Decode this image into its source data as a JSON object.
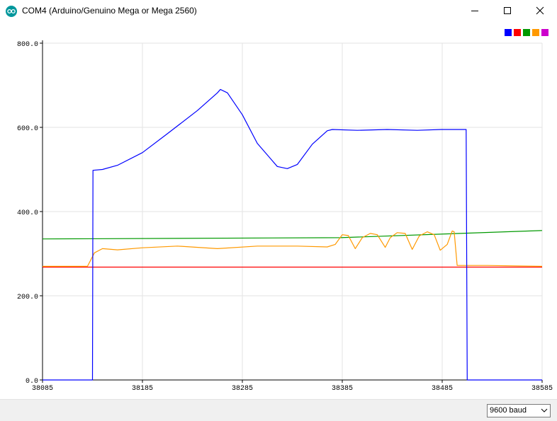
{
  "window": {
    "title": "COM4 (Arduino/Genuino Mega or Mega 2560)"
  },
  "legend_colors": [
    "#0000ff",
    "#ff0000",
    "#009900",
    "#ff9900",
    "#cc00cc"
  ],
  "baud": {
    "selected": "9600 baud"
  },
  "chart_data": {
    "type": "line",
    "title": "",
    "xlabel": "",
    "ylabel": "",
    "xlim": [
      38085,
      38585
    ],
    "ylim": [
      0,
      800
    ],
    "y_ticks": [
      0,
      200,
      400,
      600,
      800
    ],
    "y_tick_labels": [
      "0.0",
      "200.0",
      "400.0",
      "600.0",
      "800.0"
    ],
    "x_ticks": [
      38085,
      38185,
      38285,
      38385,
      38485,
      38585
    ],
    "x_tick_labels": [
      "38085",
      "38185",
      "38285",
      "38385",
      "38485",
      "38585"
    ],
    "grid": true,
    "series": [
      {
        "color": "#0000ff",
        "x": [
          38085,
          38135,
          38135.5,
          38145,
          38160,
          38185,
          38210,
          38240,
          38260,
          38263,
          38270,
          38285,
          38300,
          38320,
          38330,
          38340,
          38355,
          38370,
          38375,
          38400,
          38430,
          38460,
          38484,
          38509,
          38510,
          38585
        ],
        "y": [
          0,
          0,
          498,
          500,
          510,
          540,
          585,
          640,
          682,
          690,
          682,
          630,
          562,
          507,
          502,
          512,
          560,
          592,
          595,
          593,
          595,
          593,
          595,
          595,
          0,
          0
        ]
      },
      {
        "color": "#ff0000",
        "x": [
          38085,
          38585
        ],
        "y": [
          268,
          268
        ]
      },
      {
        "color": "#009900",
        "x": [
          38085,
          38383,
          38585
        ],
        "y": [
          335,
          338,
          355
        ]
      },
      {
        "color": "#ff9900",
        "x": [
          38085,
          38130,
          38137,
          38145,
          38160,
          38185,
          38220,
          38260,
          38300,
          38340,
          38370,
          38378,
          38385,
          38391,
          38398,
          38405,
          38413,
          38420,
          38428,
          38433,
          38440,
          38448,
          38455,
          38462,
          38470,
          38477,
          38483,
          38490,
          38495,
          38497,
          38500,
          38510,
          38530,
          38585
        ],
        "y": [
          270,
          270,
          302,
          312,
          309,
          314,
          318,
          312,
          318,
          318,
          316,
          322,
          345,
          343,
          312,
          338,
          348,
          345,
          315,
          338,
          350,
          348,
          310,
          342,
          352,
          345,
          308,
          322,
          354,
          352,
          272,
          272,
          272,
          270
        ]
      }
    ]
  }
}
